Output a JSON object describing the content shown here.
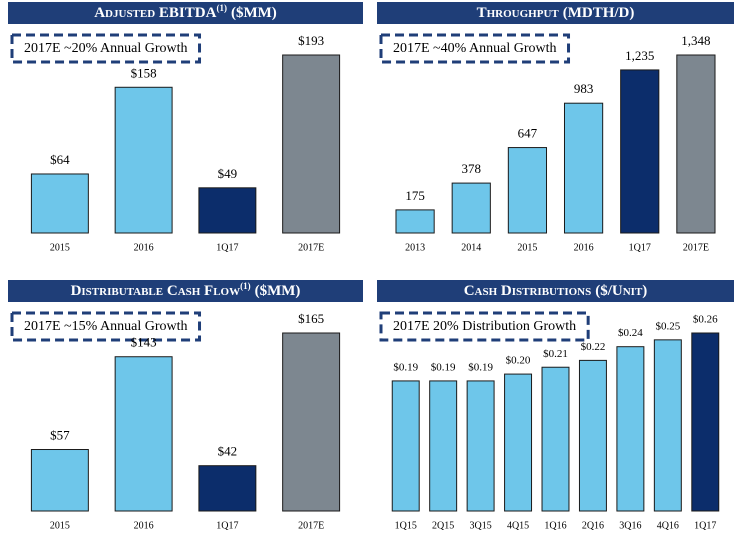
{
  "chart_data": [
    {
      "type": "bar",
      "title": "Adjusted EBITDA",
      "title_note": "(1)",
      "title_unit": "($MM)",
      "annotation": "2017E ~20% Annual Growth",
      "categories": [
        "2015",
        "2016",
        "1Q17",
        "2017E"
      ],
      "values": [
        64,
        158,
        49,
        193
      ],
      "value_labels": [
        "$64",
        "$158",
        "$49",
        "$193"
      ],
      "colors": [
        "#6ec6ea",
        "#6ec6ea",
        "#0c2d6b",
        "#7d8790"
      ]
    },
    {
      "type": "bar",
      "title": "Throughput",
      "title_unit": "(MDTH/D)",
      "annotation": "2017E ~40% Annual Growth",
      "categories": [
        "2013",
        "2014",
        "2015",
        "2016",
        "1Q17",
        "2017E"
      ],
      "values": [
        175,
        378,
        647,
        983,
        1235,
        1348
      ],
      "value_labels": [
        "175",
        "378",
        "647",
        "983",
        "1,235",
        "1,348"
      ],
      "colors": [
        "#6ec6ea",
        "#6ec6ea",
        "#6ec6ea",
        "#6ec6ea",
        "#0c2d6b",
        "#7d8790"
      ]
    },
    {
      "type": "bar",
      "title": "Distributable Cash Flow",
      "title_note": "(1)",
      "title_unit": "($MM)",
      "annotation": "2017E ~15% Annual Growth",
      "categories": [
        "2015",
        "2016",
        "1Q17",
        "2017E"
      ],
      "values": [
        57,
        143,
        42,
        165
      ],
      "value_labels": [
        "$57",
        "$143",
        "$42",
        "$165"
      ],
      "colors": [
        "#6ec6ea",
        "#6ec6ea",
        "#0c2d6b",
        "#7d8790"
      ]
    },
    {
      "type": "bar",
      "title": "Cash Distributions",
      "title_unit": "($/Unit)",
      "annotation": "2017E 20% Distribution Growth",
      "categories": [
        "1Q15",
        "2Q15",
        "3Q15",
        "4Q15",
        "1Q16",
        "2Q16",
        "3Q16",
        "4Q16",
        "1Q17"
      ],
      "values": [
        0.19,
        0.19,
        0.19,
        0.2,
        0.21,
        0.22,
        0.24,
        0.25,
        0.26
      ],
      "value_labels": [
        "$0.19",
        "$0.19",
        "$0.19",
        "$0.20",
        "$0.21",
        "$0.22",
        "$0.24",
        "$0.25",
        "$0.26"
      ],
      "colors": [
        "#6ec6ea",
        "#6ec6ea",
        "#6ec6ea",
        "#6ec6ea",
        "#6ec6ea",
        "#6ec6ea",
        "#6ec6ea",
        "#6ec6ea",
        "#0c2d6b"
      ]
    }
  ]
}
